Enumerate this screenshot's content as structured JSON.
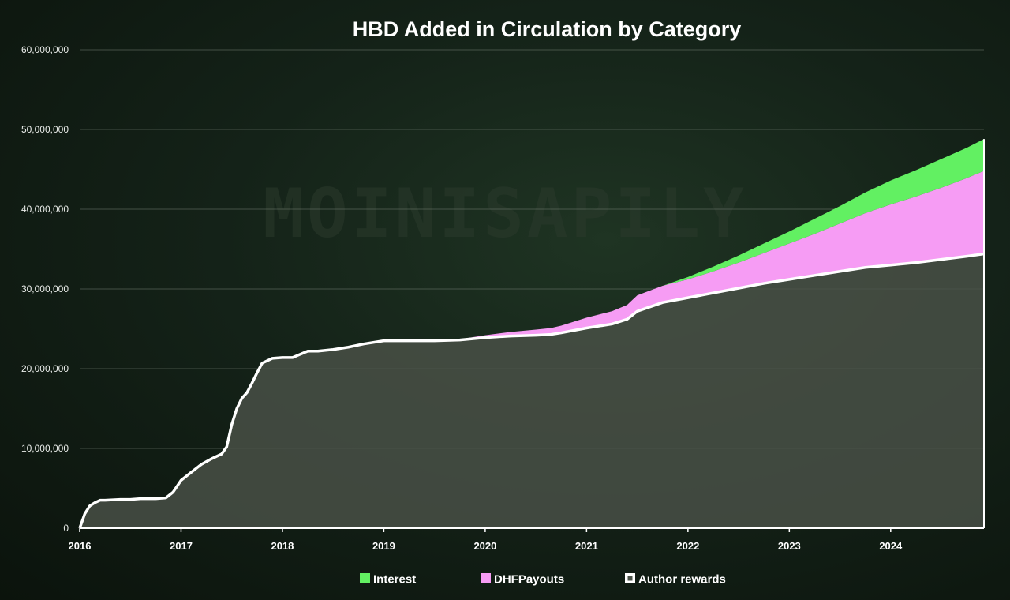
{
  "chart_data": {
    "type": "area",
    "stacked": true,
    "title": "HBD Added in Circulation by Category",
    "watermark": "MOINISAPILY",
    "xlabel": "",
    "ylabel": "",
    "x_ticks": [
      "2016",
      "2017",
      "2018",
      "2019",
      "2020",
      "2021",
      "2022",
      "2023",
      "2024"
    ],
    "y_ticks": [
      "0",
      "10,000,000",
      "20,000,000",
      "30,000,000",
      "40,000,000",
      "50,000,000",
      "60,000,000"
    ],
    "xlim": [
      2016.0,
      2024.92
    ],
    "ylim": [
      0,
      60000000
    ],
    "grid": true,
    "legend_position": "bottom",
    "x": [
      2016.0,
      2016.05,
      2016.1,
      2016.15,
      2016.2,
      2016.25,
      2016.4,
      2016.5,
      2016.6,
      2016.75,
      2016.85,
      2016.92,
      2017.0,
      2017.1,
      2017.2,
      2017.3,
      2017.4,
      2017.45,
      2017.5,
      2017.55,
      2017.6,
      2017.65,
      2017.7,
      2017.75,
      2017.8,
      2017.85,
      2017.9,
      2018.0,
      2018.1,
      2018.25,
      2018.35,
      2018.5,
      2018.65,
      2018.8,
      2019.0,
      2019.25,
      2019.5,
      2019.75,
      2020.0,
      2020.25,
      2020.5,
      2020.65,
      2020.75,
      2021.0,
      2021.25,
      2021.4,
      2021.5,
      2021.75,
      2022.0,
      2022.25,
      2022.5,
      2022.75,
      2023.0,
      2023.25,
      2023.5,
      2023.75,
      2024.0,
      2024.25,
      2024.5,
      2024.75,
      2024.92
    ],
    "series": [
      {
        "name": "Author rewards",
        "color": "#4a5248",
        "values": [
          0,
          1800000,
          2800000,
          3200000,
          3500000,
          3500000,
          3600000,
          3600000,
          3700000,
          3700000,
          3800000,
          4500000,
          6000000,
          7000000,
          8000000,
          8700000,
          9300000,
          10200000,
          13000000,
          15000000,
          16300000,
          17000000,
          18200000,
          19500000,
          20700000,
          21000000,
          21300000,
          21400000,
          21400000,
          22200000,
          22200000,
          22400000,
          22700000,
          23100000,
          23500000,
          23500000,
          23500000,
          23600000,
          23900000,
          24100000,
          24200000,
          24300000,
          24500000,
          25100000,
          25600000,
          26200000,
          27200000,
          28300000,
          28900000,
          29500000,
          30100000,
          30700000,
          31200000,
          31700000,
          32200000,
          32700000,
          33000000,
          33300000,
          33700000,
          34100000,
          34400000
        ]
      },
      {
        "name": "DHFPayouts",
        "color": "#f69cf4",
        "values": [
          0,
          0,
          0,
          0,
          0,
          0,
          0,
          0,
          0,
          0,
          0,
          0,
          0,
          0,
          0,
          0,
          0,
          0,
          0,
          0,
          0,
          0,
          0,
          0,
          0,
          0,
          0,
          0,
          0,
          0,
          0,
          0,
          0,
          0,
          0,
          0,
          0,
          100000,
          300000,
          500000,
          700000,
          800000,
          900000,
          1300000,
          1600000,
          1800000,
          2000000,
          2100000,
          2300000,
          2700000,
          3200000,
          3800000,
          4500000,
          5200000,
          6000000,
          6800000,
          7600000,
          8300000,
          9000000,
          9800000,
          10400000
        ]
      },
      {
        "name": "Interest",
        "color": "#62f062",
        "values": [
          0,
          0,
          0,
          0,
          0,
          0,
          0,
          0,
          0,
          0,
          0,
          0,
          0,
          0,
          0,
          0,
          0,
          0,
          0,
          0,
          0,
          0,
          0,
          0,
          0,
          0,
          0,
          0,
          0,
          0,
          0,
          0,
          0,
          0,
          0,
          0,
          0,
          0,
          0,
          0,
          0,
          0,
          0,
          0,
          0,
          0,
          0,
          0,
          300000,
          600000,
          900000,
          1200000,
          1500000,
          1900000,
          2200000,
          2600000,
          3000000,
          3300000,
          3600000,
          3800000,
          4000000
        ]
      }
    ]
  }
}
